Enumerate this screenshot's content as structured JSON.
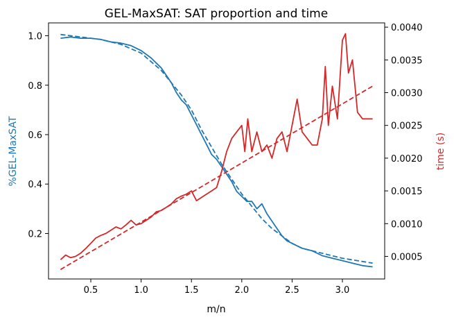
{
  "chart_data": {
    "type": "line",
    "title": "GEL-MaxSAT: SAT proportion and time",
    "xlabel": "m/n",
    "ylabel_left": "%GEL-MaxSAT",
    "ylabel_right": "time (s)",
    "xlim": [
      0.08,
      3.42
    ],
    "ylim_left": [
      0.016,
      1.052
    ],
    "ylim_right": [
      0.000155,
      0.004065
    ],
    "x_ticks": [
      0.5,
      1.0,
      1.5,
      2.0,
      2.5,
      3.0
    ],
    "x_tick_labels": [
      "0.5",
      "1.0",
      "1.5",
      "2.0",
      "2.5",
      "3.0"
    ],
    "y_left_ticks": [
      0.2,
      0.4,
      0.6,
      0.8,
      1.0
    ],
    "y_left_tick_labels": [
      "0.2",
      "0.4",
      "0.6",
      "0.8",
      "1.0"
    ],
    "y_right_ticks": [
      0.0005,
      0.001,
      0.0015,
      0.002,
      0.0025,
      0.003,
      0.0035,
      0.004
    ],
    "y_right_tick_labels": [
      "0.0005",
      "0.0010",
      "0.0015",
      "0.0020",
      "0.0025",
      "0.0030",
      "0.0035",
      "0.0040"
    ],
    "colors": {
      "sat": "#1f77b4",
      "time": "#d62728"
    },
    "grid": false,
    "legend": "none",
    "series": [
      {
        "axis": "left",
        "style": "solid",
        "x": [
          0.2,
          0.3,
          0.4,
          0.5,
          0.6,
          0.7,
          0.8,
          0.9,
          1.0,
          1.1,
          1.2,
          1.25,
          1.3,
          1.35,
          1.4,
          1.45,
          1.5,
          1.55,
          1.6,
          1.65,
          1.7,
          1.75,
          1.8,
          1.85,
          1.9,
          1.95,
          2.0,
          2.05,
          2.1,
          2.15,
          2.2,
          2.25,
          2.3,
          2.35,
          2.4,
          2.45,
          2.5,
          2.55,
          2.6,
          2.7,
          2.8,
          2.9,
          3.0,
          3.1,
          3.2,
          3.3
        ],
        "y": [
          0.99,
          0.995,
          0.99,
          0.99,
          0.985,
          0.975,
          0.97,
          0.96,
          0.94,
          0.91,
          0.87,
          0.84,
          0.81,
          0.77,
          0.74,
          0.72,
          0.68,
          0.64,
          0.6,
          0.56,
          0.52,
          0.5,
          0.47,
          0.44,
          0.41,
          0.37,
          0.35,
          0.33,
          0.33,
          0.3,
          0.32,
          0.28,
          0.25,
          0.22,
          0.19,
          0.17,
          0.16,
          0.15,
          0.14,
          0.13,
          0.11,
          0.1,
          0.09,
          0.08,
          0.07,
          0.065
        ]
      },
      {
        "axis": "left",
        "style": "dashed",
        "x": [
          0.2,
          0.4,
          0.6,
          0.8,
          1.0,
          1.2,
          1.4,
          1.5,
          1.6,
          1.7,
          1.8,
          1.9,
          2.0,
          2.1,
          2.2,
          2.3,
          2.4,
          2.5,
          2.6,
          2.8,
          3.0,
          3.3
        ],
        "y": [
          1.005,
          0.995,
          0.985,
          0.965,
          0.93,
          0.86,
          0.76,
          0.7,
          0.62,
          0.55,
          0.48,
          0.42,
          0.36,
          0.31,
          0.26,
          0.22,
          0.19,
          0.16,
          0.14,
          0.12,
          0.1,
          0.08
        ]
      },
      {
        "axis": "right",
        "style": "solid",
        "x": [
          0.2,
          0.25,
          0.3,
          0.35,
          0.4,
          0.45,
          0.5,
          0.55,
          0.6,
          0.65,
          0.7,
          0.75,
          0.8,
          0.85,
          0.9,
          0.95,
          1.0,
          1.05,
          1.1,
          1.15,
          1.2,
          1.25,
          1.3,
          1.35,
          1.4,
          1.45,
          1.5,
          1.55,
          1.6,
          1.65,
          1.7,
          1.75,
          1.8,
          1.85,
          1.9,
          1.95,
          2.0,
          2.03,
          2.06,
          2.1,
          2.15,
          2.2,
          2.25,
          2.3,
          2.35,
          2.4,
          2.45,
          2.5,
          2.55,
          2.6,
          2.65,
          2.7,
          2.75,
          2.8,
          2.83,
          2.86,
          2.9,
          2.95,
          3.0,
          3.03,
          3.06,
          3.1,
          3.15,
          3.2,
          3.25,
          3.3
        ],
        "y": [
          0.00045,
          0.00052,
          0.00048,
          0.0005,
          0.00055,
          0.00062,
          0.0007,
          0.00078,
          0.00082,
          0.00085,
          0.0009,
          0.00095,
          0.00092,
          0.00098,
          0.00105,
          0.00098,
          0.001,
          0.00105,
          0.0011,
          0.00118,
          0.0012,
          0.00125,
          0.0013,
          0.00138,
          0.00142,
          0.00145,
          0.0015,
          0.00135,
          0.0014,
          0.00145,
          0.0015,
          0.00155,
          0.0018,
          0.0021,
          0.0023,
          0.0024,
          0.0025,
          0.0021,
          0.0026,
          0.0021,
          0.0024,
          0.0021,
          0.0022,
          0.002,
          0.0023,
          0.0024,
          0.0021,
          0.0025,
          0.0029,
          0.0024,
          0.0023,
          0.0022,
          0.0022,
          0.0026,
          0.0034,
          0.0025,
          0.0031,
          0.0026,
          0.0038,
          0.0039,
          0.0033,
          0.0035,
          0.0027,
          0.0026,
          0.0026,
          0.0026
        ]
      },
      {
        "axis": "right",
        "style": "dashed",
        "x": [
          0.2,
          3.3
        ],
        "y": [
          0.0003,
          0.0031
        ]
      }
    ]
  }
}
